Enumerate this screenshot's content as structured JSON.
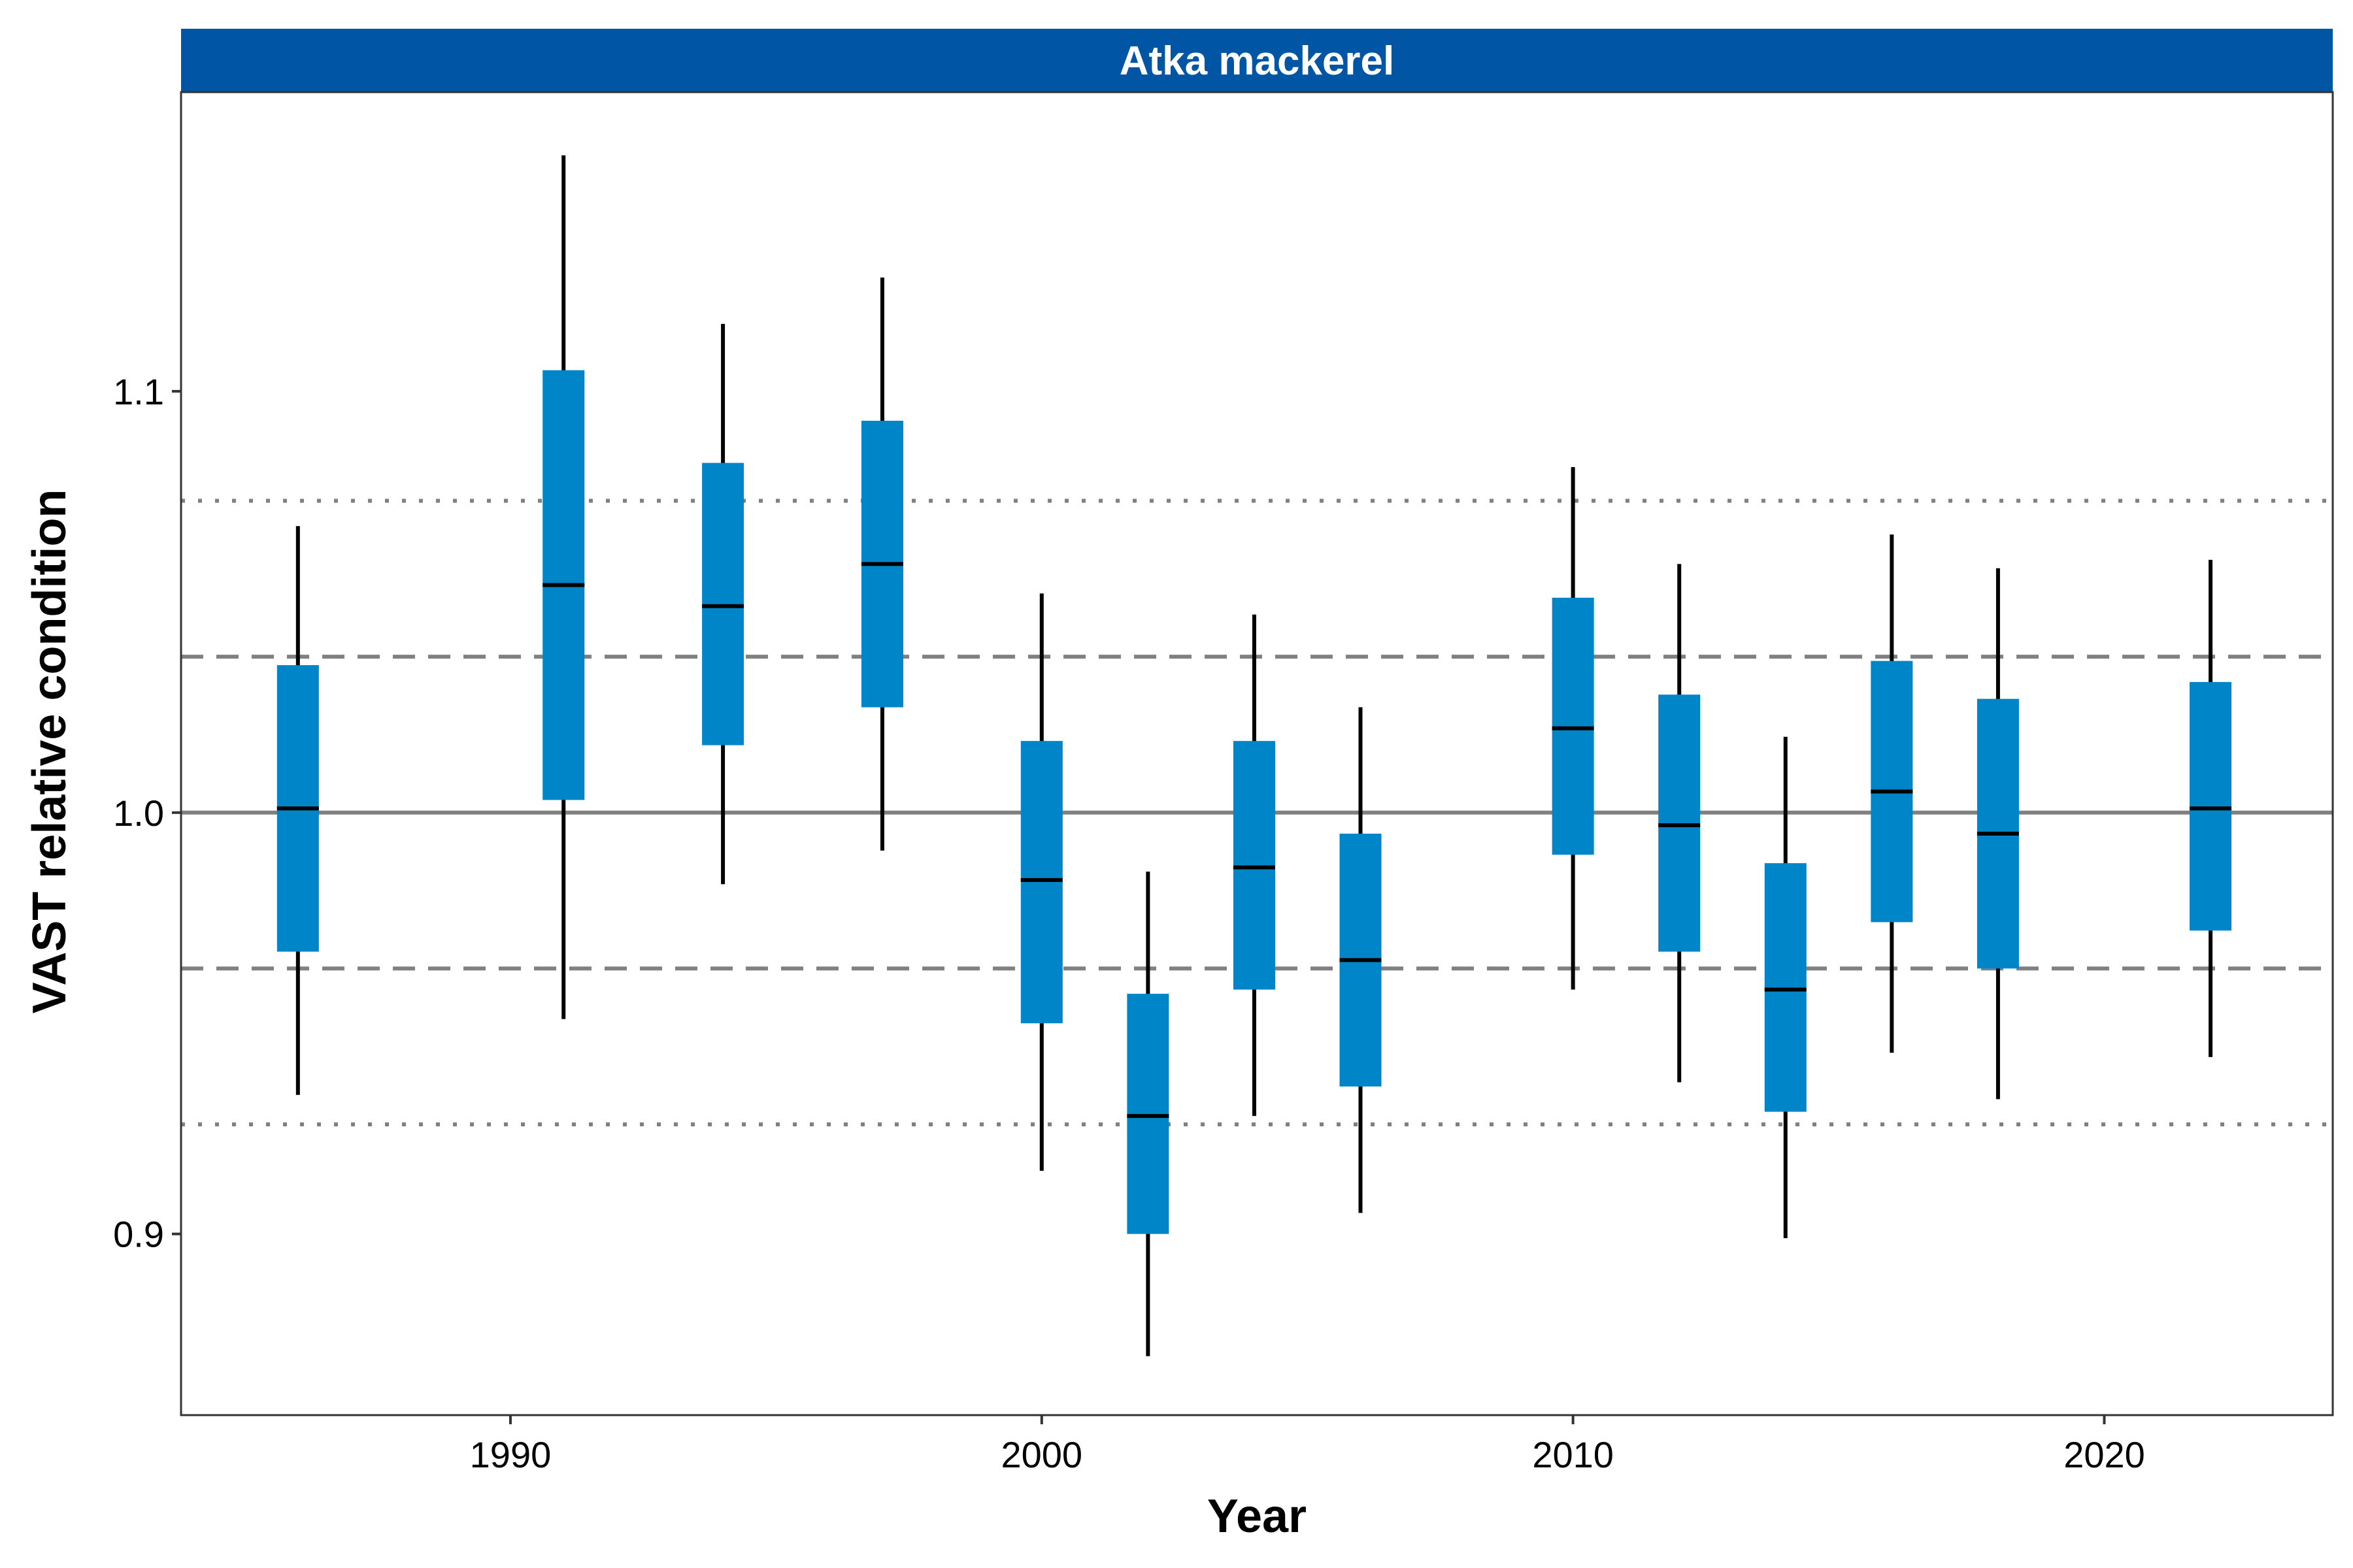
{
  "chart_data": {
    "type": "boxplot",
    "title": "Atka mackerel",
    "xlabel": "Year",
    "ylabel": "VAST relative condition",
    "xlim": [
      1983.8,
      2024.3
    ],
    "ylim": [
      0.857,
      1.171
    ],
    "x_ticks": [
      1990,
      2000,
      2010,
      2020
    ],
    "x_tick_labels": [
      "1990",
      "2000",
      "2010",
      "2020"
    ],
    "y_ticks": [
      0.9,
      1.0,
      1.1
    ],
    "y_tick_labels": [
      "0.9",
      "1.0",
      "1.1"
    ],
    "reference_lines": [
      {
        "y": 1.0,
        "style": "solid"
      },
      {
        "y": 1.037,
        "style": "dashed"
      },
      {
        "y": 0.963,
        "style": "dashed"
      },
      {
        "y": 1.074,
        "style": "dotted"
      },
      {
        "y": 0.926,
        "style": "dotted"
      }
    ],
    "years": [
      1986,
      1991,
      1994,
      1997,
      2000,
      2002,
      2004,
      2006,
      2010,
      2012,
      2014,
      2016,
      2018,
      2022
    ],
    "median": [
      1.001,
      1.054,
      1.049,
      1.059,
      0.984,
      0.928,
      0.987,
      0.965,
      1.02,
      0.997,
      0.958,
      1.005,
      0.995,
      1.001
    ],
    "box_upper": [
      1.035,
      1.105,
      1.083,
      1.093,
      1.017,
      0.957,
      1.017,
      0.995,
      1.051,
      1.028,
      0.988,
      1.036,
      1.027,
      1.031
    ],
    "box_lower": [
      0.967,
      1.003,
      1.016,
      1.025,
      0.95,
      0.9,
      0.958,
      0.935,
      0.99,
      0.967,
      0.929,
      0.974,
      0.963,
      0.972
    ],
    "whisker_upper": [
      1.068,
      1.156,
      1.116,
      1.127,
      1.052,
      0.986,
      1.047,
      1.025,
      1.082,
      1.059,
      1.018,
      1.066,
      1.058,
      1.06
    ],
    "whisker_lower": [
      0.933,
      0.951,
      0.983,
      0.991,
      0.915,
      0.871,
      0.928,
      0.905,
      0.958,
      0.936,
      0.899,
      0.943,
      0.932,
      0.942
    ],
    "colors": {
      "box": "#0085C8",
      "strip": "#0055A5",
      "line": "#000000",
      "reference": "#808080"
    }
  }
}
